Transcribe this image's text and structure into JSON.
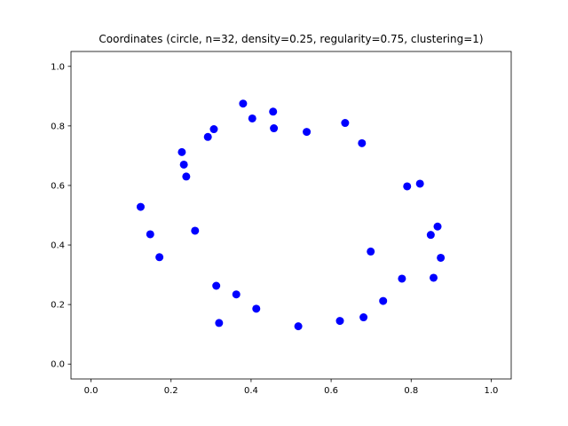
{
  "chart_data": {
    "type": "scatter",
    "title": "Coordinates (circle, n=32, density=0.25, regularity=0.75, clustering=1)",
    "xlabel": "",
    "ylabel": "",
    "xlim": [
      -0.05,
      1.05
    ],
    "ylim": [
      -0.05,
      1.05
    ],
    "xticks": [
      0.0,
      0.2,
      0.4,
      0.6,
      0.8,
      1.0
    ],
    "yticks": [
      0.0,
      0.2,
      0.4,
      0.6,
      0.8,
      1.0
    ],
    "xtick_labels": [
      "0.0",
      "0.2",
      "0.4",
      "0.6",
      "0.8",
      "1.0"
    ],
    "ytick_labels": [
      "0.0",
      "0.2",
      "0.4",
      "0.6",
      "0.8",
      "1.0"
    ],
    "grid": false,
    "marker_color": "#0000ff",
    "points": [
      {
        "x": 0.38,
        "y": 0.875
      },
      {
        "x": 0.455,
        "y": 0.848
      },
      {
        "x": 0.403,
        "y": 0.825
      },
      {
        "x": 0.635,
        "y": 0.81
      },
      {
        "x": 0.457,
        "y": 0.792
      },
      {
        "x": 0.307,
        "y": 0.789
      },
      {
        "x": 0.539,
        "y": 0.78
      },
      {
        "x": 0.292,
        "y": 0.763
      },
      {
        "x": 0.677,
        "y": 0.742
      },
      {
        "x": 0.227,
        "y": 0.712
      },
      {
        "x": 0.232,
        "y": 0.67
      },
      {
        "x": 0.238,
        "y": 0.63
      },
      {
        "x": 0.822,
        "y": 0.606
      },
      {
        "x": 0.79,
        "y": 0.597
      },
      {
        "x": 0.124,
        "y": 0.528
      },
      {
        "x": 0.866,
        "y": 0.462
      },
      {
        "x": 0.26,
        "y": 0.448
      },
      {
        "x": 0.148,
        "y": 0.436
      },
      {
        "x": 0.849,
        "y": 0.434
      },
      {
        "x": 0.699,
        "y": 0.378
      },
      {
        "x": 0.171,
        "y": 0.359
      },
      {
        "x": 0.874,
        "y": 0.357
      },
      {
        "x": 0.856,
        "y": 0.29
      },
      {
        "x": 0.777,
        "y": 0.287
      },
      {
        "x": 0.313,
        "y": 0.263
      },
      {
        "x": 0.363,
        "y": 0.234
      },
      {
        "x": 0.73,
        "y": 0.212
      },
      {
        "x": 0.413,
        "y": 0.186
      },
      {
        "x": 0.681,
        "y": 0.157
      },
      {
        "x": 0.622,
        "y": 0.145
      },
      {
        "x": 0.32,
        "y": 0.138
      },
      {
        "x": 0.518,
        "y": 0.127
      }
    ]
  }
}
